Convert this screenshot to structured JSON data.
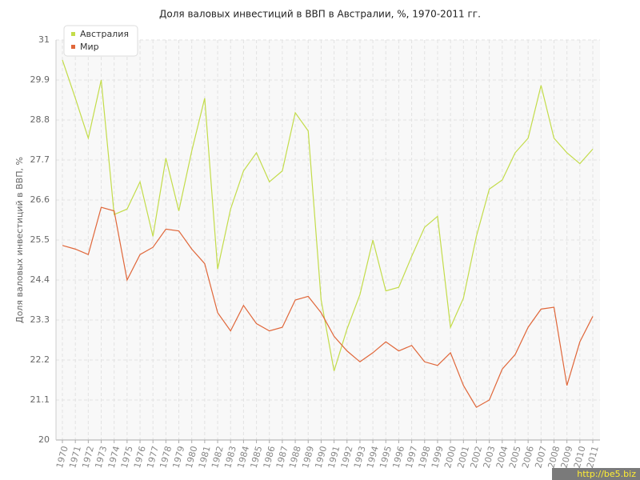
{
  "chart_data": {
    "type": "line",
    "title": "Доля валовых инвестиций в ВВП в Австралии, %, 1970-2011 гг.",
    "y_label": "Доля валовых инвестиций в ВВП, %",
    "watermark": "http://be5.biz",
    "categories": [
      "1970",
      "1971",
      "1972",
      "1973",
      "1974",
      "1975",
      "1976",
      "1977",
      "1978",
      "1979",
      "1980",
      "1981",
      "1982",
      "1983",
      "1984",
      "1985",
      "1986",
      "1987",
      "1988",
      "1989",
      "1990",
      "1991",
      "1992",
      "1993",
      "1994",
      "1995",
      "1996",
      "1997",
      "1998",
      "1999",
      "2000",
      "2001",
      "2002",
      "2003",
      "2004",
      "2005",
      "2006",
      "2007",
      "2008",
      "2009",
      "2010",
      "2011"
    ],
    "series": [
      {
        "name": "Австралия",
        "color": "#c3dc4a",
        "values": [
          30.45,
          29.4,
          28.3,
          29.9,
          26.2,
          26.35,
          27.1,
          25.6,
          27.75,
          26.3,
          27.95,
          29.4,
          24.7,
          26.35,
          27.4,
          27.9,
          27.1,
          27.4,
          29.0,
          28.5,
          23.85,
          21.9,
          23.05,
          24.0,
          25.5,
          24.1,
          24.2,
          25.05,
          25.85,
          26.15,
          23.1,
          23.9,
          25.6,
          26.9,
          27.15,
          27.9,
          28.3,
          29.75,
          28.3,
          27.9,
          27.6,
          28.0
        ]
      },
      {
        "name": "Мир",
        "color": "#e0673a",
        "values": [
          25.35,
          25.25,
          25.1,
          26.4,
          26.3,
          24.4,
          25.1,
          25.3,
          25.8,
          25.75,
          25.25,
          24.85,
          23.5,
          23.0,
          23.7,
          23.2,
          23.0,
          23.1,
          23.85,
          23.95,
          23.5,
          22.85,
          22.45,
          22.15,
          22.4,
          22.7,
          22.45,
          22.6,
          22.15,
          22.05,
          22.4,
          21.5,
          20.9,
          21.1,
          21.95,
          22.35,
          23.1,
          23.6,
          23.65,
          21.5,
          22.7,
          23.4
        ]
      }
    ],
    "ylim": [
      20,
      31
    ],
    "yticks": [
      20,
      21.1,
      22.2,
      23.3,
      24.4,
      25.5,
      26.6,
      27.7,
      28.8,
      29.9,
      31
    ],
    "grid": true,
    "legend": "top-left"
  }
}
